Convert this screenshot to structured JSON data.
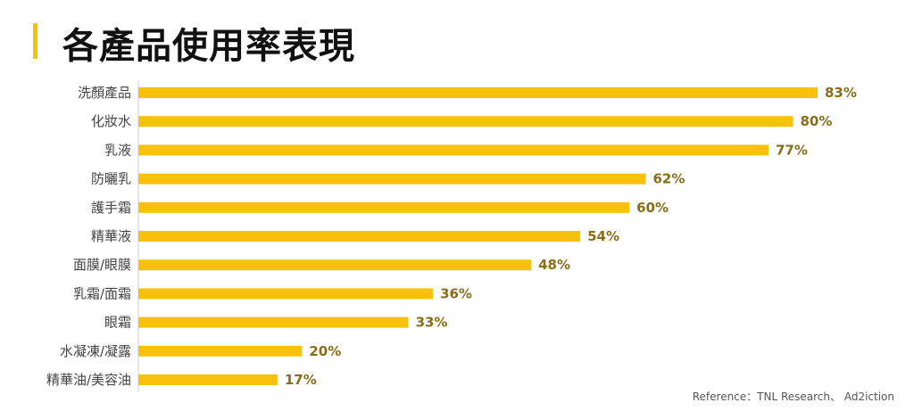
{
  "header": {
    "title": "各產品使用率表現"
  },
  "chart_data": {
    "type": "bar",
    "orientation": "horizontal",
    "title": "各產品使用率表現",
    "xlabel": "",
    "ylabel": "",
    "xlim": [
      0,
      83
    ],
    "grid": false,
    "categories": [
      "洗顏產品",
      "化妝水",
      "乳液",
      "防曬乳",
      "護手霜",
      "精華液",
      "面膜/眼膜",
      "乳霜/面霜",
      "眼霜",
      "水凝凍/凝露",
      "精華油/美容油"
    ],
    "values": [
      83,
      80,
      77,
      62,
      60,
      54,
      48,
      36,
      33,
      20,
      17
    ],
    "value_labels": [
      "83%",
      "80%",
      "77%",
      "62%",
      "60%",
      "54%",
      "48%",
      "36%",
      "33%",
      "20%",
      "17%"
    ],
    "bar_color": "#f9c10b",
    "value_label_color": "#8a6d1a"
  },
  "footer": {
    "source": "Reference：TNL Research、 Ad2iction"
  }
}
